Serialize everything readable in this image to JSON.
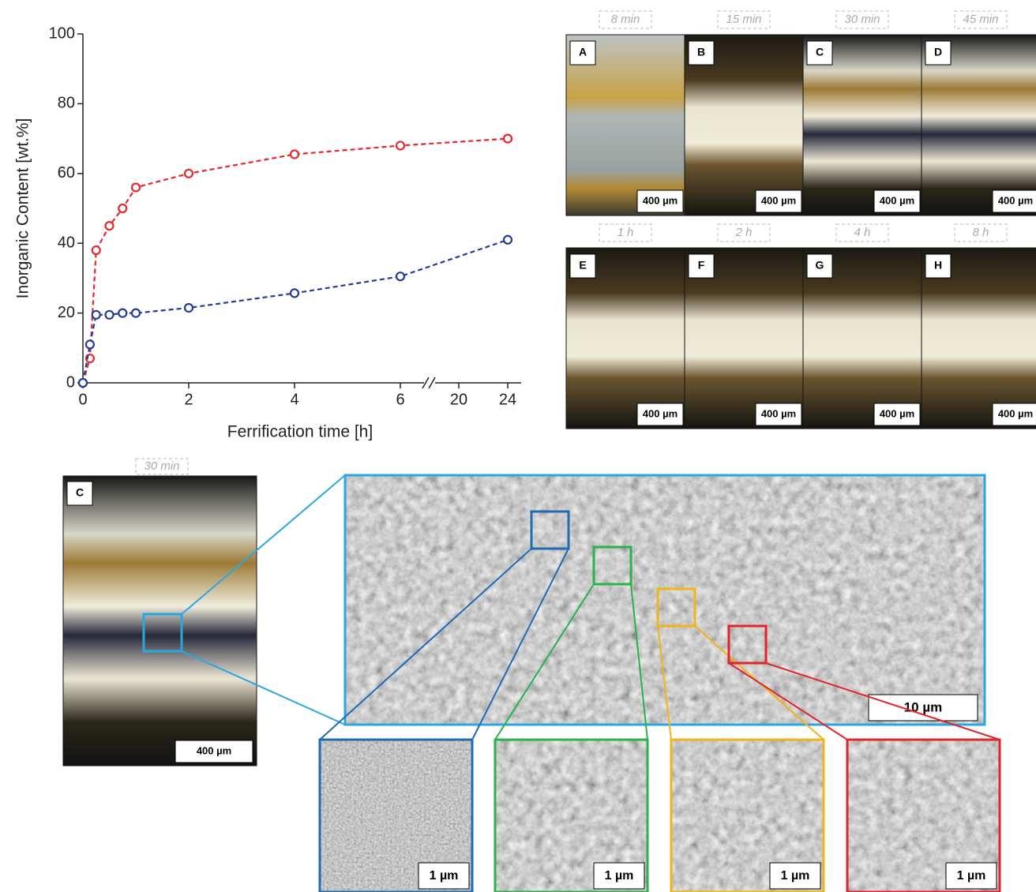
{
  "chart_data": {
    "type": "line",
    "x_label": "Ferrification time [h]",
    "y_label": "Inorganic Content [wt.%]",
    "x": [
      0,
      0.133,
      0.25,
      0.5,
      0.75,
      1,
      2,
      4,
      6,
      24
    ],
    "series": [
      {
        "color": "#e8262b",
        "values": [
          0,
          7,
          38,
          45,
          50,
          56,
          60,
          65.5,
          68,
          70
        ]
      },
      {
        "color": "#233c96",
        "values": [
          0,
          11,
          19.5,
          19.5,
          20,
          20,
          21.5,
          25.7,
          30.5,
          41
        ]
      }
    ],
    "xlim": [
      0,
      24
    ],
    "xticks": [
      0,
      2,
      4,
      6,
      20,
      24
    ],
    "ylim": [
      0,
      100
    ],
    "yticks": [
      0,
      20,
      40,
      60,
      80,
      100
    ]
  },
  "panels": [
    {
      "time": "8 min",
      "letter": "A",
      "scale": "400 µm"
    },
    {
      "time": "15 min",
      "letter": "B",
      "scale": "400 µm"
    },
    {
      "time": "30 min",
      "letter": "C",
      "scale": "400 µm"
    },
    {
      "time": "45 min",
      "letter": "D",
      "scale": "400 µm"
    },
    {
      "time": "1 h",
      "letter": "E",
      "scale": "400 µm"
    },
    {
      "time": "2 h",
      "letter": "F",
      "scale": "400 µm"
    },
    {
      "time": "4 h",
      "letter": "G",
      "scale": "400 µm"
    },
    {
      "time": "8 h",
      "letter": "H",
      "scale": "400 µm"
    }
  ],
  "detail": {
    "time": "30 min",
    "letter": "C",
    "scale": "400 µm"
  },
  "sem": {
    "scale": "10 µm",
    "zooms": [
      {
        "scale": "1 µm"
      },
      {
        "scale": "1 µm"
      },
      {
        "scale": "1 µm"
      },
      {
        "scale": "1 µm"
      }
    ]
  }
}
